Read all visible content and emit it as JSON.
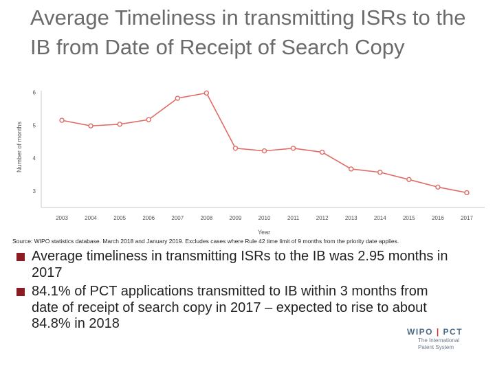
{
  "title": "Average Timeliness in transmitting ISRs to the IB from Date of Receipt of Search Copy",
  "chart_data": {
    "type": "line",
    "x": [
      "2003",
      "2004",
      "2005",
      "2006",
      "2007",
      "2008",
      "2009",
      "2010",
      "2011",
      "2012",
      "2013",
      "2014",
      "2015",
      "2016",
      "2017"
    ],
    "series": [
      {
        "values": [
          5.15,
          4.98,
          5.03,
          5.17,
          5.82,
          5.98,
          4.3,
          4.22,
          4.3,
          4.18,
          3.67,
          3.57,
          3.35,
          3.12,
          2.95
        ]
      }
    ],
    "xlabel": "Year",
    "ylabel": "Number of months",
    "yticks": [
      3,
      4,
      5,
      6
    ],
    "ylim": [
      2.5,
      6.05
    ],
    "grid": false,
    "line_color": "#e06b66"
  },
  "source": "Source: WIPO statistics database.  March 2018 and January 2019.  Excludes cases where Rule 42 time limit of 9 months from the priority date applies.",
  "bullets": [
    "Average timeliness in transmitting ISRs to the IB was 2.95 months in 2017",
    "84.1% of PCT applications transmitted to IB within 3 months from date of receipt of search copy in 2017 – expected to rise to about 84.8% in 2018"
  ],
  "logo": {
    "brand_left": "WIPO",
    "brand_sep": "|",
    "brand_right": "PCT",
    "tag_line1": "The International",
    "tag_line2": "Patent System"
  },
  "colors": {
    "accent": "#8b1c23",
    "series": "#e06b66"
  }
}
